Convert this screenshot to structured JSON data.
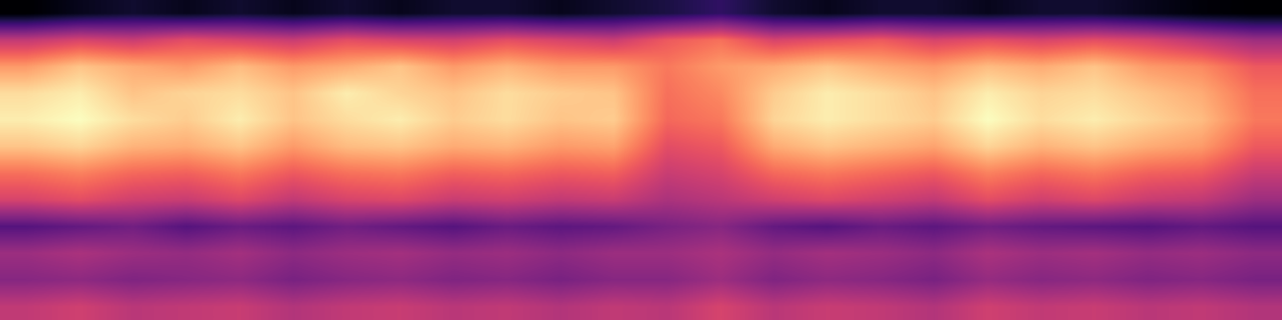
{
  "chart_data": {
    "type": "heatmap",
    "tick_labels": false,
    "cells": [
      [
        0.05,
        0.08,
        0.1,
        0.08,
        0.1,
        0.08,
        0.1,
        0.08,
        0.1,
        0.1,
        0.08,
        0.1,
        0.12,
        0.15,
        0.1,
        0.08,
        0.1,
        0.1,
        0.08,
        0.1,
        0.1,
        0.08,
        0.06,
        0.05
      ],
      [
        0.35,
        0.38,
        0.36,
        0.4,
        0.38,
        0.36,
        0.4,
        0.38,
        0.37,
        0.4,
        0.38,
        0.36,
        0.42,
        0.45,
        0.38,
        0.4,
        0.42,
        0.38,
        0.4,
        0.38,
        0.4,
        0.38,
        0.34,
        0.3
      ],
      [
        0.5,
        0.55,
        0.52,
        0.5,
        0.54,
        0.5,
        0.52,
        0.55,
        0.5,
        0.53,
        0.5,
        0.5,
        0.46,
        0.5,
        0.52,
        0.55,
        0.52,
        0.5,
        0.54,
        0.52,
        0.55,
        0.5,
        0.48,
        0.42
      ],
      [
        0.58,
        0.6,
        0.55,
        0.57,
        0.58,
        0.55,
        0.6,
        0.57,
        0.55,
        0.58,
        0.56,
        0.55,
        0.45,
        0.48,
        0.56,
        0.6,
        0.58,
        0.55,
        0.6,
        0.57,
        0.58,
        0.55,
        0.52,
        0.45
      ],
      [
        0.6,
        0.62,
        0.58,
        0.56,
        0.6,
        0.55,
        0.58,
        0.6,
        0.56,
        0.58,
        0.55,
        0.56,
        0.44,
        0.46,
        0.57,
        0.6,
        0.58,
        0.56,
        0.62,
        0.58,
        0.6,
        0.57,
        0.54,
        0.46
      ],
      [
        0.55,
        0.57,
        0.53,
        0.52,
        0.55,
        0.5,
        0.54,
        0.55,
        0.52,
        0.53,
        0.5,
        0.51,
        0.4,
        0.42,
        0.52,
        0.55,
        0.53,
        0.51,
        0.57,
        0.53,
        0.55,
        0.52,
        0.5,
        0.42
      ],
      [
        0.45,
        0.47,
        0.44,
        0.43,
        0.46,
        0.42,
        0.45,
        0.46,
        0.43,
        0.44,
        0.42,
        0.43,
        0.36,
        0.38,
        0.44,
        0.46,
        0.44,
        0.42,
        0.47,
        0.44,
        0.46,
        0.43,
        0.42,
        0.36
      ],
      [
        0.38,
        0.4,
        0.37,
        0.36,
        0.39,
        0.35,
        0.38,
        0.39,
        0.36,
        0.37,
        0.35,
        0.36,
        0.32,
        0.34,
        0.37,
        0.39,
        0.37,
        0.35,
        0.4,
        0.37,
        0.39,
        0.36,
        0.35,
        0.3
      ],
      [
        0.2,
        0.22,
        0.24,
        0.2,
        0.23,
        0.21,
        0.24,
        0.22,
        0.2,
        0.23,
        0.21,
        0.22,
        0.25,
        0.27,
        0.22,
        0.2,
        0.23,
        0.21,
        0.24,
        0.22,
        0.21,
        0.2,
        0.22,
        0.2
      ],
      [
        0.3,
        0.32,
        0.3,
        0.29,
        0.31,
        0.28,
        0.3,
        0.31,
        0.29,
        0.3,
        0.28,
        0.3,
        0.3,
        0.32,
        0.29,
        0.31,
        0.3,
        0.28,
        0.32,
        0.3,
        0.31,
        0.29,
        0.3,
        0.28
      ],
      [
        0.27,
        0.28,
        0.26,
        0.27,
        0.28,
        0.25,
        0.27,
        0.28,
        0.26,
        0.27,
        0.25,
        0.27,
        0.27,
        0.3,
        0.26,
        0.28,
        0.27,
        0.25,
        0.29,
        0.27,
        0.28,
        0.26,
        0.27,
        0.25
      ],
      [
        0.35,
        0.37,
        0.34,
        0.35,
        0.36,
        0.33,
        0.35,
        0.36,
        0.34,
        0.35,
        0.33,
        0.35,
        0.34,
        0.38,
        0.34,
        0.36,
        0.35,
        0.33,
        0.37,
        0.35,
        0.36,
        0.34,
        0.35,
        0.33
      ]
    ]
  }
}
